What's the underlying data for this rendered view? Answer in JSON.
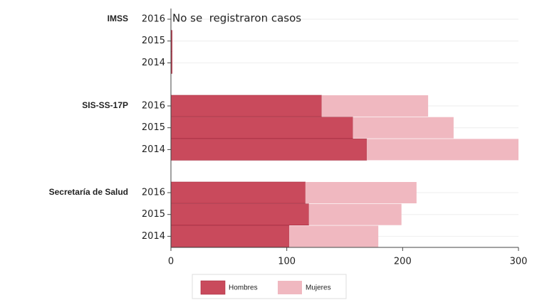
{
  "chart_data": {
    "type": "stacked-barh",
    "groups": [
      "IMSS",
      "SIS-SS-17P",
      "Secretaría de Salud"
    ],
    "categories": [
      "2016",
      "2015",
      "2014",
      "2016",
      "2015",
      "2014",
      "2016",
      "2015",
      "2014"
    ],
    "series": [
      {
        "name": "Hombres",
        "color": "#c94a5c",
        "values": [
          null,
          1,
          1,
          130,
          157,
          169,
          116,
          119,
          102
        ]
      },
      {
        "name": "Mujeres",
        "color": "#f0b8c0",
        "values": [
          null,
          null,
          null,
          92,
          87,
          131,
          96,
          80,
          77
        ]
      }
    ],
    "annotation": "No se  registraron casos",
    "xlim": [
      0,
      300
    ],
    "xticks": [
      0,
      100,
      200,
      300
    ],
    "grid": true,
    "legend": "bottom"
  }
}
